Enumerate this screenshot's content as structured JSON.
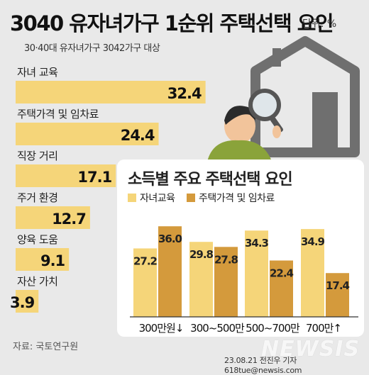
{
  "header": {
    "title": "3040 유자녀가구 1순위 주택선택 요인",
    "unit": "단위: %",
    "subtitle": "30·40대 유자녀가구 3042가구 대상"
  },
  "footer": {
    "source": "자료: 국토연구원",
    "credit": "23.08.21 전진우 기자 618tue@newsis.com",
    "watermark": "NEWSIS"
  },
  "colors": {
    "main_bar": "#f5d579",
    "edu": "#f5d579",
    "house": "#d49a3c",
    "house_icon": "#6f6f6f"
  },
  "chart_data": [
    {
      "type": "bar",
      "orientation": "horizontal",
      "title": "3040 유자녀가구 1순위 주택선택 요인",
      "unit": "%",
      "categories": [
        "자녀 교육",
        "주택가격 및 임차료",
        "직장 거리",
        "주거 환경",
        "양육 도움",
        "자산 가치"
      ],
      "values": [
        32.4,
        24.4,
        17.1,
        12.7,
        9.1,
        3.9
      ]
    },
    {
      "type": "bar",
      "orientation": "vertical",
      "title": "소득별 주요 주택선택 요인",
      "categories": [
        "300만원↓",
        "300~500만",
        "500~700만",
        "700만↑"
      ],
      "series": [
        {
          "name": "자녀교육",
          "values": [
            27.2,
            29.8,
            34.3,
            34.9
          ]
        },
        {
          "name": "주택가격 및 임차료",
          "values": [
            36.0,
            27.8,
            22.4,
            17.4
          ]
        }
      ]
    }
  ]
}
